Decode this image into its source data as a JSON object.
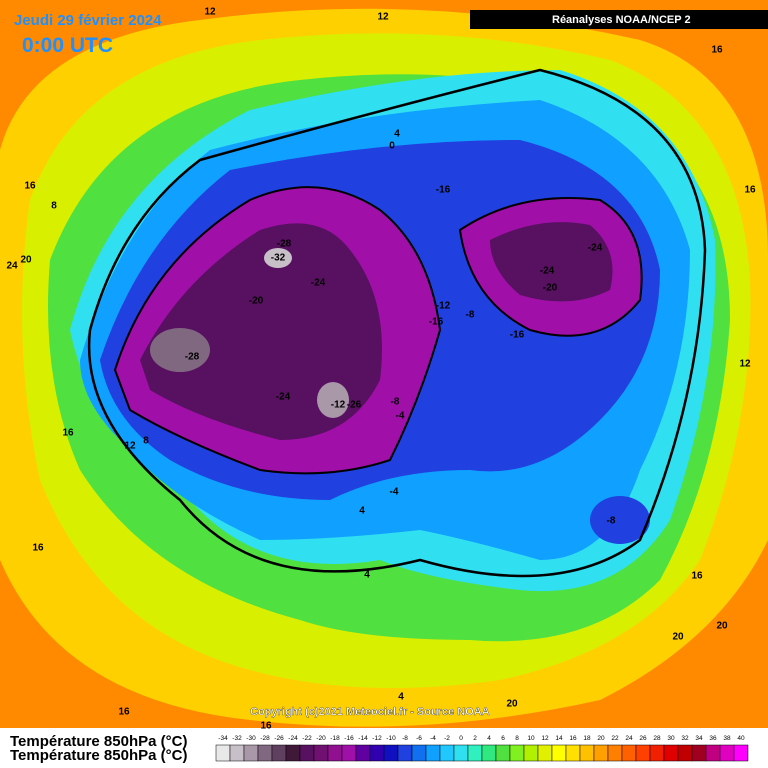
{
  "header": {
    "date": "Jeudi 29 février 2024",
    "time": "0:00 UTC",
    "source_box": "Réanalyses NOAA/NCEP 2"
  },
  "copyright": "Copyright (c)2021 Meteociel.fr - Source NOAA",
  "legend": {
    "title": "Température 850hPa (°C)",
    "values": [
      -34,
      -32,
      -30,
      -28,
      -26,
      -24,
      -22,
      -20,
      -18,
      -16,
      -14,
      -12,
      -10,
      -8,
      -6,
      -4,
      -2,
      0,
      2,
      4,
      6,
      8,
      10,
      12,
      14,
      16,
      18,
      20,
      22,
      24,
      26,
      28,
      30,
      32,
      34,
      36,
      38,
      40
    ],
    "colors": [
      "#e8e8e8",
      "#c8c0c8",
      "#a898a8",
      "#806880",
      "#604060",
      "#401838",
      "#581060",
      "#701070",
      "#901090",
      "#a010a8",
      "#6000a0",
      "#3000b0",
      "#1010c0",
      "#2040e0",
      "#1070f0",
      "#10a0ff",
      "#20c8ff",
      "#30e0f0",
      "#30f0c0",
      "#30e880",
      "#50e040",
      "#80f020",
      "#b0f000",
      "#e0f000",
      "#ffff00",
      "#ffe000",
      "#ffc000",
      "#ffa000",
      "#ff8000",
      "#ff6000",
      "#ff4000",
      "#f02000",
      "#e00000",
      "#c00000",
      "#a00020",
      "#c00080",
      "#e000c0",
      "#ff00ff"
    ]
  },
  "contour_labels": [
    12,
    12,
    16,
    16,
    8,
    24,
    20,
    4,
    0,
    -16,
    -28,
    -32,
    -24,
    -20,
    -28,
    -24,
    -12,
    -26,
    -12,
    -8,
    -16,
    -24,
    -24,
    -20,
    -16,
    -8,
    -4,
    -4,
    4,
    -8,
    16,
    12,
    16,
    12,
    8,
    16,
    4,
    16,
    20,
    20,
    4,
    20,
    16,
    16
  ]
}
